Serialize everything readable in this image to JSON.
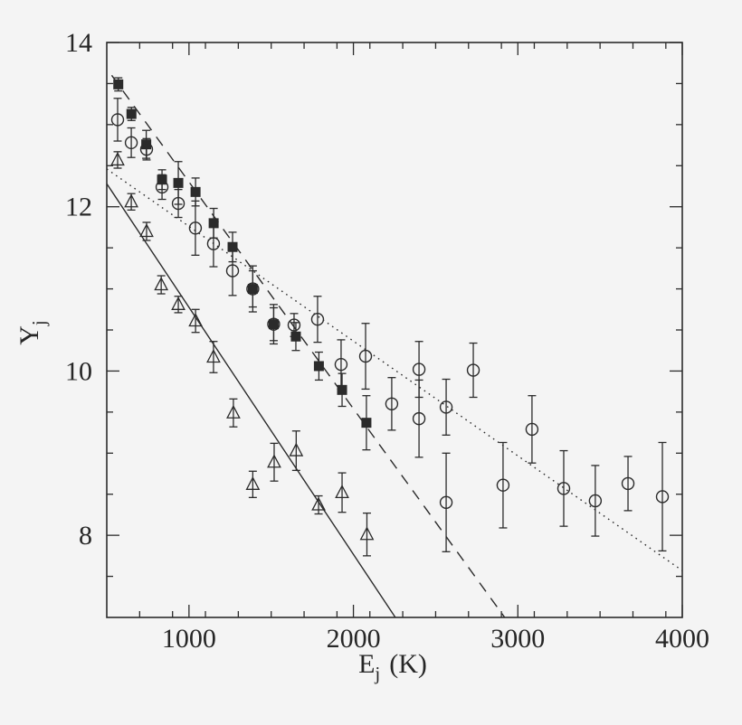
{
  "figure": {
    "background": "#f4f4f4",
    "ink": "#2b2b2b",
    "xlabel": {
      "base": "E",
      "sub": "j",
      "unit": "(K)"
    },
    "ylabel": {
      "base": "Y",
      "sub": "j"
    }
  },
  "chart_data": {
    "type": "scatter",
    "title": "",
    "xlabel": "E_j (K)",
    "ylabel": "Y_j",
    "xlim": [
      500,
      4000
    ],
    "ylim": [
      7,
      14
    ],
    "grid": false,
    "legend": false,
    "x_major_ticks": [
      1000,
      2000,
      3000,
      4000
    ],
    "x_tick_labels": [
      "1000",
      "2000",
      "3000",
      "4000"
    ],
    "x_minor_step": 200,
    "y_major_ticks": [
      8,
      10,
      12,
      14
    ],
    "y_tick_labels": [
      "8",
      "10",
      "12",
      "14"
    ],
    "y_minor_step": 0.5,
    "series": [
      {
        "name": "filled-squares",
        "marker": "filled-square",
        "points": [
          {
            "x": 570,
            "y": 13.49,
            "err": 0.08
          },
          {
            "x": 650,
            "y": 13.13,
            "err": 0.08
          },
          {
            "x": 740,
            "y": 12.76,
            "err": 0.17
          },
          {
            "x": 836,
            "y": 12.33,
            "err": 0.12
          },
          {
            "x": 935,
            "y": 12.29,
            "err": 0.26
          },
          {
            "x": 1040,
            "y": 12.18,
            "err": 0.17
          },
          {
            "x": 1150,
            "y": 11.8,
            "err": 0.18
          },
          {
            "x": 1265,
            "y": 11.51,
            "err": 0.18
          },
          {
            "x": 1388,
            "y": 11.0,
            "err": 0.22
          },
          {
            "x": 1515,
            "y": 10.57,
            "err": 0.2
          },
          {
            "x": 1650,
            "y": 10.42,
            "err": 0.17
          },
          {
            "x": 1790,
            "y": 10.06,
            "err": 0.17
          },
          {
            "x": 1931,
            "y": 9.77,
            "err": 0.2
          },
          {
            "x": 2079,
            "y": 9.37,
            "err": 0.33
          }
        ]
      },
      {
        "name": "open-circles",
        "marker": "open-circle",
        "points": [
          {
            "x": 566,
            "y": 13.06,
            "err": 0.26
          },
          {
            "x": 649,
            "y": 12.78,
            "err": 0.18
          },
          {
            "x": 742,
            "y": 12.7,
            "err": 0.13
          },
          {
            "x": 836,
            "y": 12.24,
            "err": 0.15
          },
          {
            "x": 935,
            "y": 12.04,
            "err": 0.17
          },
          {
            "x": 1039,
            "y": 11.74,
            "err": 0.33
          },
          {
            "x": 1149,
            "y": 11.55,
            "err": 0.28
          },
          {
            "x": 1265,
            "y": 11.22,
            "err": 0.3
          },
          {
            "x": 1388,
            "y": 11.0,
            "err": 0.28
          },
          {
            "x": 1515,
            "y": 10.57,
            "err": 0.24
          },
          {
            "x": 1639,
            "y": 10.56,
            "err": 0.14
          },
          {
            "x": 1782,
            "y": 10.63,
            "err": 0.28
          },
          {
            "x": 1925,
            "y": 10.08,
            "err": 0.3
          },
          {
            "x": 2074,
            "y": 10.18,
            "err": 0.4
          },
          {
            "x": 2233,
            "y": 9.6,
            "err": 0.32
          },
          {
            "x": 2399,
            "y": 10.02,
            "err": 0.34
          },
          {
            "x": 2399,
            "y": 9.42,
            "err": 0.47
          },
          {
            "x": 2564,
            "y": 9.56,
            "err": 0.34
          },
          {
            "x": 2564,
            "y": 8.4,
            "err": 0.6
          },
          {
            "x": 2729,
            "y": 10.01,
            "err": 0.33
          },
          {
            "x": 2910,
            "y": 8.61,
            "err": 0.52
          },
          {
            "x": 3086,
            "y": 9.29,
            "err": 0.41
          },
          {
            "x": 3279,
            "y": 8.57,
            "err": 0.46
          },
          {
            "x": 3471,
            "y": 8.42,
            "err": 0.43
          },
          {
            "x": 3670,
            "y": 8.63,
            "err": 0.33
          },
          {
            "x": 3879,
            "y": 8.47,
            "err": 0.66
          }
        ]
      },
      {
        "name": "open-triangles",
        "marker": "open-triangle",
        "points": [
          {
            "x": 566,
            "y": 12.57,
            "err": 0.1
          },
          {
            "x": 649,
            "y": 12.06,
            "err": 0.1
          },
          {
            "x": 742,
            "y": 11.7,
            "err": 0.11
          },
          {
            "x": 831,
            "y": 11.05,
            "err": 0.11
          },
          {
            "x": 935,
            "y": 10.81,
            "err": 0.1
          },
          {
            "x": 1040,
            "y": 10.61,
            "err": 0.14
          },
          {
            "x": 1149,
            "y": 10.17,
            "err": 0.19
          },
          {
            "x": 1270,
            "y": 9.49,
            "err": 0.17
          },
          {
            "x": 1388,
            "y": 8.62,
            "err": 0.16
          },
          {
            "x": 1518,
            "y": 8.89,
            "err": 0.23
          },
          {
            "x": 1652,
            "y": 9.03,
            "err": 0.24
          },
          {
            "x": 1788,
            "y": 8.37,
            "err": 0.11
          },
          {
            "x": 1931,
            "y": 8.52,
            "err": 0.24
          },
          {
            "x": 2082,
            "y": 8.01,
            "err": 0.26
          }
        ]
      }
    ],
    "fit_lines": [
      {
        "name": "solid-fit",
        "style": "solid",
        "x1": 500,
        "y1": 12.28,
        "x2": 2255,
        "y2": 7.0
      },
      {
        "name": "dashed-fit",
        "style": "dashed",
        "x1": 530,
        "y1": 13.6,
        "x2": 2920,
        "y2": 7.0
      },
      {
        "name": "dotted-fit",
        "style": "dotted",
        "x1": 500,
        "y1": 12.46,
        "x2": 4000,
        "y2": 7.57
      }
    ]
  }
}
